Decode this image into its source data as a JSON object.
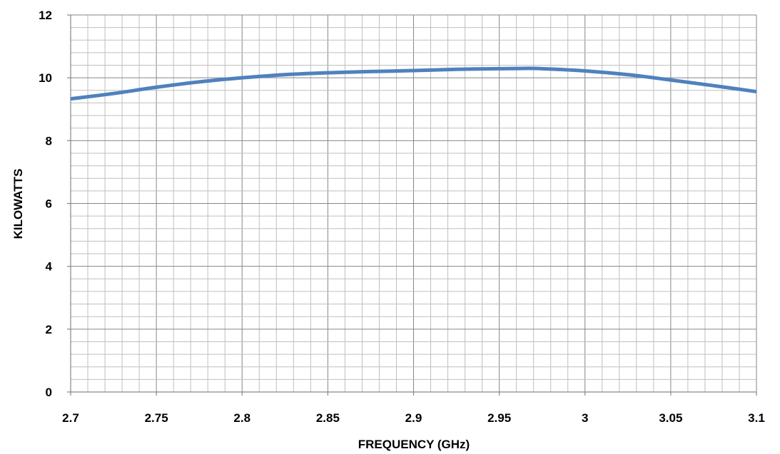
{
  "chart_data": {
    "type": "line",
    "title": "",
    "xlabel": "FREQUENCY (GHz)",
    "ylabel": "KILOWATTS",
    "xlim": [
      2.7,
      3.1
    ],
    "ylim": [
      0,
      12
    ],
    "x_ticks": [
      "2.7",
      "2.75",
      "2.8",
      "2.85",
      "2.9",
      "2.95",
      "3",
      "3.05",
      "3.1"
    ],
    "y_ticks": [
      "0",
      "2",
      "4",
      "6",
      "8",
      "10",
      "12"
    ],
    "grid": true,
    "legend": "none",
    "series": [
      {
        "color": "#4f81bd",
        "x": [
          2.7,
          2.725,
          2.75,
          2.775,
          2.8,
          2.825,
          2.85,
          2.875,
          2.9,
          2.925,
          2.95,
          2.965,
          2.975,
          3.0,
          3.025,
          3.05,
          3.075,
          3.1
        ],
        "y": [
          9.33,
          9.5,
          9.7,
          9.87,
          10.0,
          10.1,
          10.16,
          10.2,
          10.23,
          10.27,
          10.29,
          10.3,
          10.29,
          10.22,
          10.1,
          9.93,
          9.75,
          9.56
        ]
      }
    ]
  }
}
